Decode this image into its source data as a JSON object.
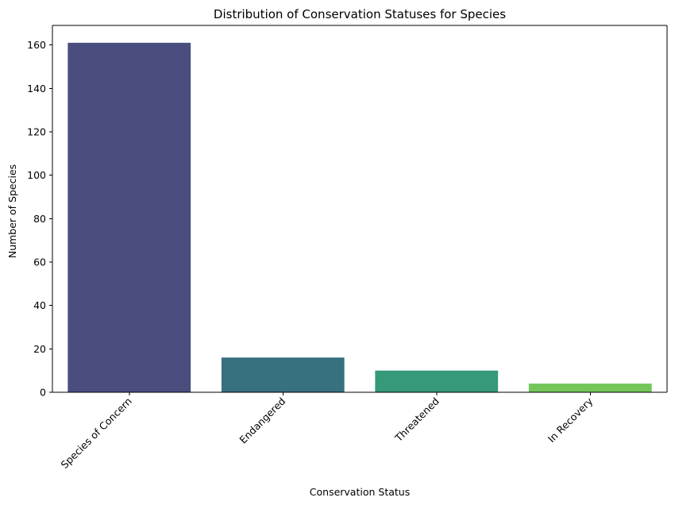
{
  "chart_data": {
    "type": "bar",
    "title": "Distribution of Conservation Statuses for Species",
    "xlabel": "Conservation Status",
    "ylabel": "Number of Species",
    "categories": [
      "Species of Concern",
      "Endangered",
      "Threatened",
      "In Recovery"
    ],
    "values": [
      161,
      16,
      10,
      4
    ],
    "colors": [
      "#482878",
      "#26828e",
      "#1f9e89",
      "#6ece58"
    ],
    "bar_colors_rendered": [
      "#4a4e7f",
      "#37707f",
      "#35997a",
      "#74c65a"
    ],
    "ylim": [
      0,
      169
    ],
    "yticks": [
      0,
      20,
      40,
      60,
      80,
      100,
      120,
      140,
      160
    ],
    "ytick_labels": [
      "0",
      "20",
      "40",
      "60",
      "80",
      "100",
      "120",
      "140",
      "160"
    ],
    "xtick_rotation_deg": 45,
    "grid": false,
    "legend": "none"
  }
}
